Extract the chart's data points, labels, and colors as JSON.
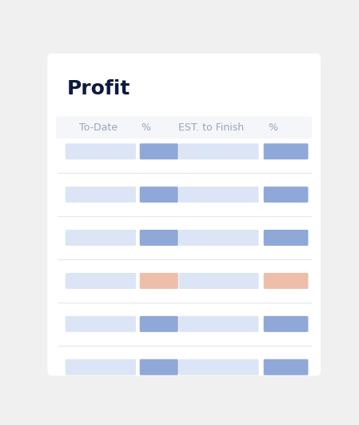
{
  "title": "Profit",
  "title_fontsize": 18,
  "title_color": "#0d1b3e",
  "title_fontweight": "bold",
  "background_color": "#f0f0f0",
  "card_bg": "#ffffff",
  "header_bg": "#f5f6fa",
  "header_labels": [
    "To-Date",
    "%",
    "EST. to Finish",
    "%"
  ],
  "header_color": "#9aa5b8",
  "header_fontsize": 9,
  "n_rows": 6,
  "blue_light": "#dce5f5",
  "blue_dark": "#8fa8d8",
  "orange_light": "#f5ddd1",
  "orange_dark": "#edbeaa",
  "separator_color": "#e5e7eb",
  "rows": [
    {
      "col2_color": "#8fa8d8",
      "col4_color": "#8fa8d8"
    },
    {
      "col2_color": "#8fa8d8",
      "col4_color": "#8fa8d8"
    },
    {
      "col2_color": "#8fa8d8",
      "col4_color": "#8fa8d8"
    },
    {
      "col2_color": "#edbeaa",
      "col4_color": "#edbeaa"
    },
    {
      "col2_color": "#8fa8d8",
      "col4_color": "#8fa8d8"
    },
    {
      "col2_color": "#8fa8d8",
      "col4_color": "#8fa8d8"
    }
  ]
}
